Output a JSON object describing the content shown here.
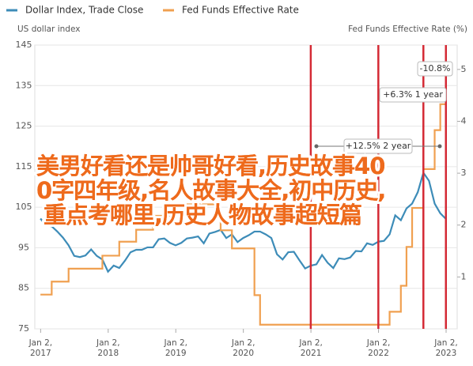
{
  "chart_data": {
    "type": "line",
    "y_label": "US dollar index",
    "y2_label": "Fed Funds Effective Rate (%)",
    "xlim": [
      "2016-12",
      "2023-03"
    ],
    "xticks": [
      {
        "value": "2017-01-02",
        "label": "Jan 2, 2017"
      },
      {
        "value": "2018-01-02",
        "label": "Jan 2, 2018"
      },
      {
        "value": "2019-01-02",
        "label": "Jan 2, 2019"
      },
      {
        "value": "2020-01-02",
        "label": "Jan 2, 2020"
      },
      {
        "value": "2021-01-02",
        "label": "Jan 2, 2021"
      },
      {
        "value": "2022-01-02",
        "label": "Jan 2, 2022"
      },
      {
        "value": "2023-01-02",
        "label": "Jan 2, 2023"
      }
    ],
    "ylim": [
      75,
      145
    ],
    "yticks": [
      75,
      85,
      95,
      105,
      115,
      125,
      135,
      145
    ],
    "y2lim": [
      0,
      5.47
    ],
    "y2ticks": [
      1,
      2,
      3,
      4,
      5
    ],
    "reference_lines": [
      "2021-01",
      "2022-01",
      "2022-09",
      "2023-01"
    ],
    "annotations": [
      "-10.8%",
      "+6.3% 1 year",
      "+12.5% 2 year"
    ],
    "series": [
      {
        "name": "Dollar Index, Trade Close",
        "color": "#3d8cb8",
        "axis": "y",
        "x": [
          "2017-01",
          "2017-02",
          "2017-03",
          "2017-04",
          "2017-05",
          "2017-06",
          "2017-07",
          "2017-08",
          "2017-09",
          "2017-10",
          "2017-11",
          "2017-12",
          "2018-01",
          "2018-02",
          "2018-03",
          "2018-04",
          "2018-05",
          "2018-06",
          "2018-07",
          "2018-08",
          "2018-09",
          "2018-10",
          "2018-11",
          "2018-12",
          "2019-01",
          "2019-02",
          "2019-03",
          "2019-04",
          "2019-05",
          "2019-06",
          "2019-07",
          "2019-08",
          "2019-09",
          "2019-10",
          "2019-11",
          "2019-12",
          "2020-01",
          "2020-02",
          "2020-03",
          "2020-04",
          "2020-05",
          "2020-06",
          "2020-07",
          "2020-08",
          "2020-09",
          "2020-10",
          "2020-11",
          "2020-12",
          "2021-01",
          "2021-02",
          "2021-03",
          "2021-04",
          "2021-05",
          "2021-06",
          "2021-07",
          "2021-08",
          "2021-09",
          "2021-10",
          "2021-11",
          "2021-12",
          "2022-01",
          "2022-02",
          "2022-03",
          "2022-04",
          "2022-05",
          "2022-06",
          "2022-07",
          "2022-08",
          "2022-09",
          "2022-10",
          "2022-11",
          "2022-12",
          "2023-01"
        ],
        "values": [
          102.2,
          100.5,
          100.3,
          99,
          97.5,
          95.6,
          93,
          92.7,
          93.1,
          94.6,
          93,
          92.1,
          89.1,
          90.6,
          90,
          91.8,
          93.9,
          94.5,
          94.5,
          95.1,
          95.1,
          97.1,
          97.3,
          96.2,
          95.6,
          96.2,
          97.3,
          97.5,
          97.8,
          96.1,
          98.5,
          98.9,
          99.4,
          97.4,
          98.3,
          96.4,
          97.4,
          98.1,
          99,
          99,
          98.3,
          97.4,
          93.4,
          92.1,
          93.9,
          94,
          91.9,
          89.9,
          90.6,
          90.9,
          93.2,
          91.3,
          90,
          92.4,
          92.2,
          92.6,
          94.2,
          94.1,
          96.1,
          95.7,
          96.5,
          96.7,
          98.3,
          103,
          101.8,
          104.7,
          105.9,
          108.7,
          113.5,
          111.5,
          105.9,
          103.5,
          102.1
        ]
      },
      {
        "name": "Fed Funds Effective Rate",
        "color": "#f0a050",
        "axis": "y2",
        "step": true,
        "x": [
          "2017-01",
          "2017-03",
          "2017-06",
          "2017-12",
          "2018-03",
          "2018-06",
          "2018-09",
          "2018-12",
          "2019-08",
          "2019-09",
          "2019-11",
          "2020-03",
          "2020-04",
          "2022-03",
          "2022-05",
          "2022-06",
          "2022-07",
          "2022-09",
          "2022-11",
          "2022-12",
          "2023-01"
        ],
        "values": [
          0.66,
          0.91,
          1.16,
          1.41,
          1.68,
          1.91,
          2.18,
          2.4,
          2.13,
          1.9,
          1.55,
          0.65,
          0.08,
          0.33,
          0.83,
          1.58,
          2.33,
          3.08,
          3.83,
          4.33,
          4.33
        ]
      }
    ]
  },
  "overlay_lines": [
    "美男好看还是帅哥好看,历史故事40",
    "0字四年级,名人故事大全,初中历史,",
    "重点考哪里,历史人物故事超短篇"
  ]
}
